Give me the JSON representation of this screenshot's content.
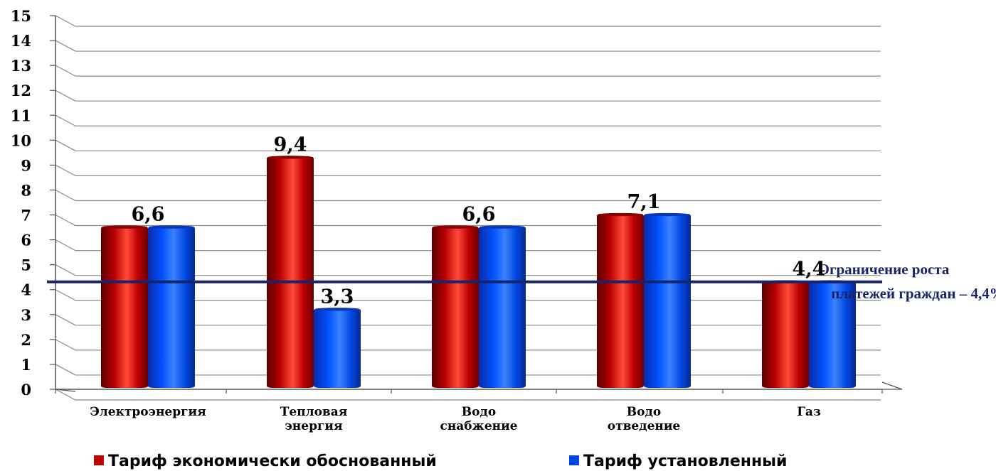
{
  "chart_data": {
    "type": "bar",
    "categories": [
      [
        "Электроэнергия"
      ],
      [
        "Тепловая",
        "энергия"
      ],
      [
        "Водо",
        "снабжение"
      ],
      [
        "Водо",
        "отведение"
      ],
      [
        "Газ"
      ]
    ],
    "series": [
      {
        "name": "Тариф экономически обоснованный",
        "values": [
          6.6,
          9.4,
          6.6,
          7.1,
          4.4
        ],
        "color": "#c00000"
      },
      {
        "name": "Тариф установленный",
        "values": [
          6.6,
          3.3,
          6.6,
          7.1,
          4.4
        ],
        "color": "#0047e6"
      }
    ],
    "data_labels": [
      "6,6",
      "9,4",
      "3,3",
      "6,6",
      "7,1",
      "4,4"
    ],
    "ylim": [
      0,
      15
    ],
    "yticks": [
      0,
      1,
      2,
      3,
      4,
      5,
      6,
      7,
      8,
      9,
      10,
      11,
      12,
      13,
      14,
      15
    ],
    "grid": true,
    "legend_position": "bottom",
    "reference_line": {
      "value": 4.4,
      "label_lines": [
        "Ограничение роста",
        "платежей граждан – 4,4%"
      ],
      "color": "#17246a"
    }
  }
}
